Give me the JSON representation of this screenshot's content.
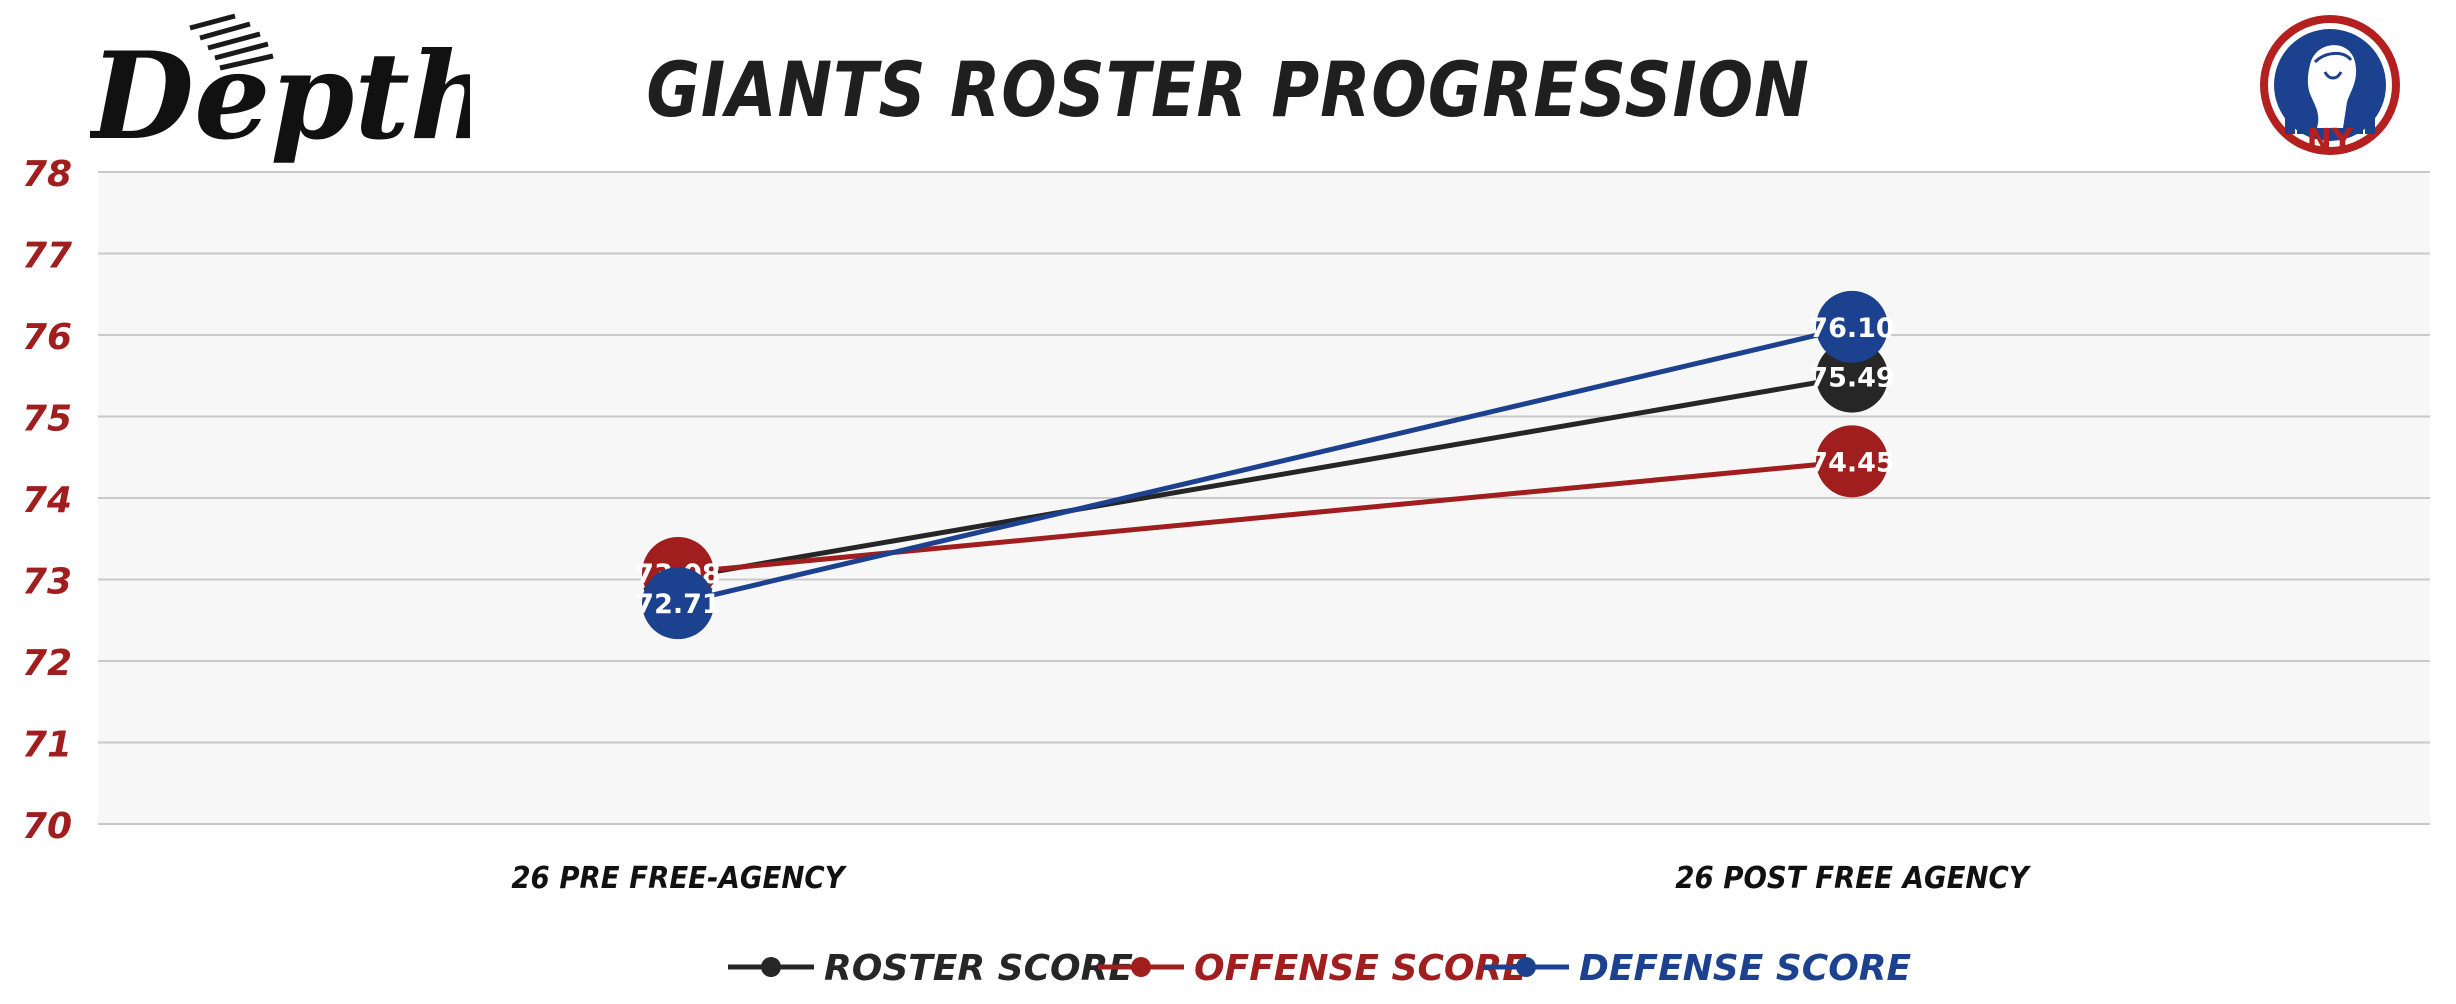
{
  "branding": {
    "left_logo_text": "Depth",
    "right_logo_text": "NY"
  },
  "colors": {
    "roster": "#262626",
    "offense": "#a01e1e",
    "defense": "#1c418f",
    "axis_text": "#a01e1e",
    "plot_bg": "#f7f7f7",
    "grid": "#c9c9c9"
  },
  "chart_data": {
    "type": "line",
    "title": "GIANTS ROSTER PROGRESSION",
    "categories": [
      "26 PRE FREE-AGENCY",
      "26 POST FREE AGENCY"
    ],
    "series": [
      {
        "name": "ROSTER SCORE",
        "color": "#262626",
        "values": [
          73.02,
          75.49
        ]
      },
      {
        "name": "OFFENSE SCORE",
        "color": "#a01e1e",
        "values": [
          73.08,
          74.45
        ]
      },
      {
        "name": "DEFENSE SCORE",
        "color": "#1c418f",
        "values": [
          72.71,
          76.1
        ]
      }
    ],
    "value_labels": [
      [
        "73.02",
        "75.49"
      ],
      [
        "73.08",
        "74.45"
      ],
      [
        "72.71",
        "76.10"
      ]
    ],
    "ylim": [
      70,
      78
    ],
    "yticks": [
      "70",
      "71",
      "72",
      "73",
      "74",
      "75",
      "76",
      "77",
      "78"
    ],
    "grid": true,
    "legend_position": "bottom"
  }
}
